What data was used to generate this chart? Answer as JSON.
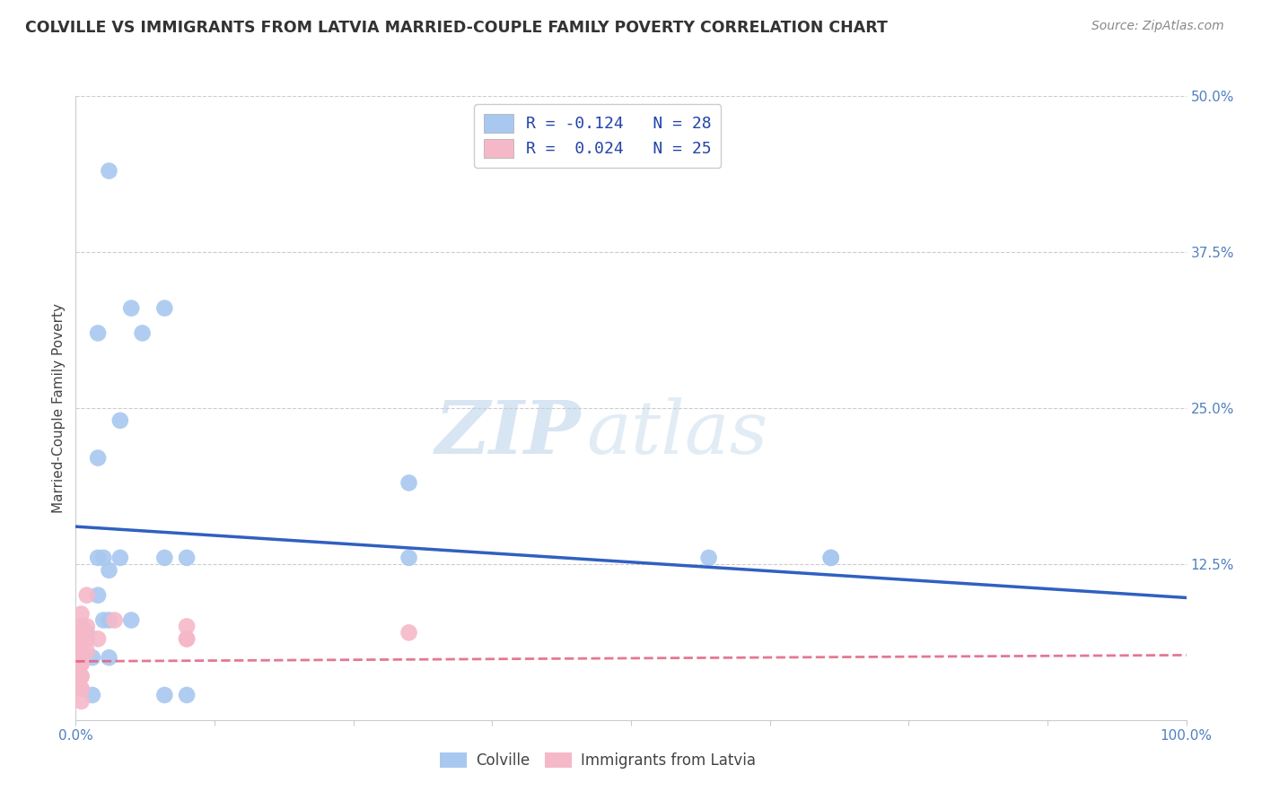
{
  "title": "COLVILLE VS IMMIGRANTS FROM LATVIA MARRIED-COUPLE FAMILY POVERTY CORRELATION CHART",
  "source": "Source: ZipAtlas.com",
  "ylabel": "Married-Couple Family Poverty",
  "xlim": [
    0,
    1.0
  ],
  "ylim": [
    0,
    0.5
  ],
  "legend_blue_label": "R = -0.124   N = 28",
  "legend_pink_label": "R =  0.024   N = 25",
  "watermark_zip": "ZIP",
  "watermark_atlas": "atlas",
  "colville_color": "#a8c8f0",
  "latvia_color": "#f5b8c8",
  "trendline_blue_color": "#3060c0",
  "trendline_pink_color": "#e06080",
  "legend_text_color": "#2244aa",
  "colville_points_x": [
    0.03,
    0.05,
    0.02,
    0.04,
    0.02,
    0.02,
    0.02,
    0.03,
    0.03,
    0.04,
    0.06,
    0.08,
    0.01,
    0.015,
    0.025,
    0.025,
    0.03,
    0.05,
    0.1,
    0.3,
    0.57,
    0.68,
    0.68,
    0.3,
    0.08,
    0.08,
    0.1,
    0.015
  ],
  "colville_points_y": [
    0.44,
    0.33,
    0.31,
    0.24,
    0.21,
    0.13,
    0.1,
    0.12,
    0.08,
    0.13,
    0.31,
    0.33,
    0.07,
    0.05,
    0.13,
    0.08,
    0.05,
    0.08,
    0.13,
    0.13,
    0.13,
    0.13,
    0.13,
    0.19,
    0.13,
    0.02,
    0.02,
    0.02
  ],
  "latvia_points_x": [
    0.005,
    0.005,
    0.005,
    0.005,
    0.005,
    0.005,
    0.005,
    0.005,
    0.005,
    0.005,
    0.005,
    0.005,
    0.005,
    0.005,
    0.005,
    0.01,
    0.01,
    0.01,
    0.01,
    0.02,
    0.035,
    0.1,
    0.1,
    0.1,
    0.3
  ],
  "latvia_points_y": [
    0.085,
    0.075,
    0.065,
    0.055,
    0.045,
    0.035,
    0.025,
    0.015,
    0.055,
    0.045,
    0.035,
    0.025,
    0.075,
    0.065,
    0.05,
    0.1,
    0.075,
    0.065,
    0.055,
    0.065,
    0.08,
    0.065,
    0.075,
    0.065,
    0.07
  ],
  "blue_trend_x": [
    0.0,
    1.0
  ],
  "blue_trend_y": [
    0.155,
    0.098
  ],
  "pink_trend_x": [
    0.0,
    1.0
  ],
  "pink_trend_y": [
    0.047,
    0.052
  ],
  "background_color": "#ffffff",
  "grid_color": "#cccccc",
  "title_color": "#333333",
  "axis_label_color": "#5080c0",
  "right_tick_color": "#5080c0"
}
